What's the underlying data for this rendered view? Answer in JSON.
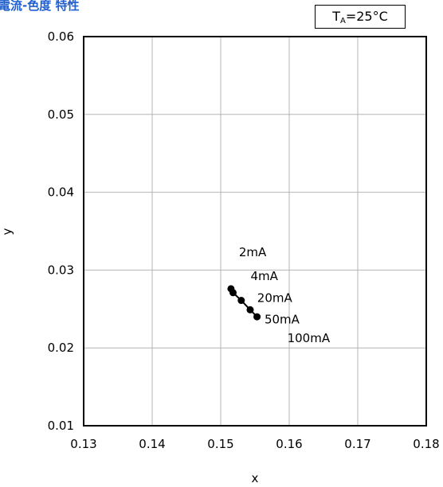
{
  "title": "電流-色度 特性",
  "condition": {
    "symbol": "T",
    "subscript": "A",
    "value": "=25°C"
  },
  "chart_data": {
    "type": "scatter",
    "title": "電流-色度 特性",
    "xlabel": "x",
    "ylabel": "y",
    "xlim": [
      0.13,
      0.18
    ],
    "ylim": [
      0.01,
      0.06
    ],
    "xticks": [
      "0.13",
      "0.14",
      "0.15",
      "0.16",
      "0.17",
      "0.18"
    ],
    "yticks": [
      "0.01",
      "0.02",
      "0.03",
      "0.04",
      "0.05",
      "0.06"
    ],
    "grid": true,
    "series": [
      {
        "points": [
          {
            "label": "2mA",
            "x": 0.1515,
            "y": 0.0276
          },
          {
            "label": "4mA",
            "x": 0.1518,
            "y": 0.0271
          },
          {
            "label": "20mA",
            "x": 0.153,
            "y": 0.0261
          },
          {
            "label": "50mA",
            "x": 0.1543,
            "y": 0.0249
          },
          {
            "label": "100mA",
            "x": 0.1553,
            "y": 0.024
          }
        ]
      }
    ],
    "annotations": [
      "2mA",
      "4mA",
      "20mA",
      "50mA",
      "100mA"
    ]
  }
}
